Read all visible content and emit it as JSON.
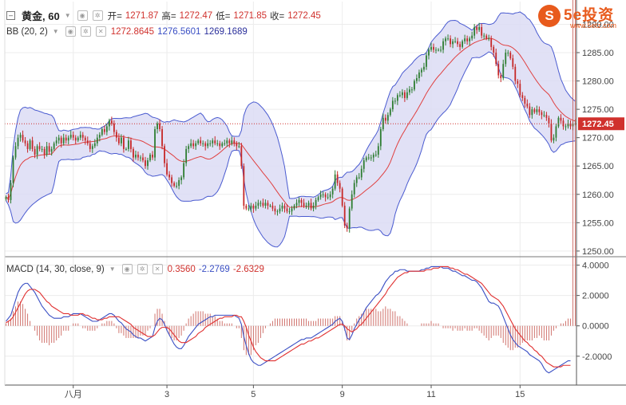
{
  "header": {
    "symbol": "黄金, 60",
    "open_label": "开=",
    "open_value": "1271.87",
    "high_label": "高=",
    "high_value": "1272.47",
    "low_label": "低=",
    "low_value": "1271.85",
    "close_label": "收=",
    "close_value": "1272.45"
  },
  "bb_legend": {
    "label": "BB (20, 2)",
    "basis": "1272.8645",
    "upper": "1276.5601",
    "lower": "1269.1689"
  },
  "macd_legend": {
    "label": "MACD (14, 30, close, 9)",
    "hist": "0.3560",
    "macd": "-2.2769",
    "signal": "-2.6329"
  },
  "logo": {
    "glyph": "S",
    "name": "5e投资",
    "url": "www.5etz.com"
  },
  "colors": {
    "up": "#2e7d32",
    "down": "#c62828",
    "bb_line": "#4a5bd0",
    "bb_fill": "#dcdcf4",
    "basis_line": "#e04040",
    "macd_line": "#3a4fc4",
    "signal_line": "#e03030",
    "hist": "#c0453d",
    "price_tag": "#d0312d"
  },
  "chart_data": [
    {
      "type": "candlestick",
      "title": "黄金, 60",
      "y_axis_ticks": [
        "1250.00",
        "1255.00",
        "1260.00",
        "1265.00",
        "1270.00",
        "1275.00",
        "1280.00",
        "1285.00",
        "1290.00"
      ],
      "ylim": [
        1249,
        1294
      ],
      "x_tick_labels": [
        "八月",
        "3",
        "5",
        "9",
        "11",
        "15"
      ],
      "x_tick_index": [
        28,
        67,
        103,
        140,
        177,
        214
      ],
      "n_bars": 240,
      "last_price": "1272.45",
      "close": [
        1259.5,
        1259.0,
        1262.0,
        1266.5,
        1268.5,
        1270.0,
        1270.5,
        1269.5,
        1269.0,
        1268.0,
        1269.5,
        1268.0,
        1267.0,
        1268.5,
        1268.0,
        1268.0,
        1267.0,
        1268.5,
        1267.5,
        1268.0,
        1269.0,
        1269.5,
        1270.0,
        1269.0,
        1270.0,
        1269.5,
        1270.0,
        1270.5,
        1270.0,
        1269.5,
        1270.0,
        1270.5,
        1270.0,
        1269.5,
        1269.0,
        1268.0,
        1268.5,
        1269.0,
        1270.0,
        1270.5,
        1271.5,
        1271.0,
        1272.0,
        1273.0,
        1272.5,
        1271.0,
        1270.0,
        1269.0,
        1270.0,
        1268.0,
        1268.0,
        1269.5,
        1268.0,
        1266.5,
        1267.0,
        1266.5,
        1266.5,
        1266.0,
        1265.0,
        1266.0,
        1267.0,
        1266.5,
        1271.5,
        1272.5,
        1271.5,
        1268.5,
        1265.5,
        1263.5,
        1263.0,
        1262.0,
        1261.5,
        1261.5,
        1262.5,
        1263.0,
        1265.5,
        1268.0,
        1268.5,
        1269.0,
        1268.5,
        1269.0,
        1269.5,
        1269.0,
        1269.0,
        1268.5,
        1269.0,
        1269.0,
        1269.5,
        1269.0,
        1269.0,
        1268.5,
        1269.0,
        1269.0,
        1269.5,
        1269.0,
        1269.5,
        1269.0,
        1268.5,
        1268.5,
        1265.0,
        1258.0,
        1257.5,
        1257.5,
        1258.0,
        1257.5,
        1258.0,
        1258.5,
        1258.5,
        1258.0,
        1258.5,
        1258.0,
        1258.0,
        1257.5,
        1257.0,
        1257.0,
        1257.5,
        1258.0,
        1257.5,
        1257.0,
        1257.0,
        1257.5,
        1258.0,
        1258.5,
        1259.0,
        1258.5,
        1258.0,
        1258.0,
        1258.5,
        1257.5,
        1258.0,
        1259.0,
        1259.5,
        1260.0,
        1260.0,
        1259.5,
        1259.5,
        1260.0,
        1261.0,
        1263.5,
        1262.0,
        1261.0,
        1258.0,
        1254.5,
        1254.0,
        1257.5,
        1260.0,
        1262.0,
        1263.0,
        1263.0,
        1264.5,
        1266.0,
        1266.5,
        1266.5,
        1266.5,
        1267.0,
        1267.0,
        1268.5,
        1271.5,
        1273.5,
        1273.0,
        1274.0,
        1275.0,
        1276.5,
        1276.5,
        1277.5,
        1277.5,
        1278.0,
        1277.0,
        1278.0,
        1278.5,
        1278.5,
        1280.0,
        1280.5,
        1281.5,
        1282.0,
        1282.5,
        1284.5,
        1285.5,
        1286.0,
        1285.5,
        1285.5,
        1285.5,
        1285.5,
        1287.0,
        1287.5,
        1287.5,
        1286.5,
        1287.0,
        1287.0,
        1286.5,
        1286.0,
        1287.0,
        1287.5,
        1287.0,
        1287.5,
        1288.0,
        1289.5,
        1289.0,
        1289.5,
        1288.0,
        1288.0,
        1287.5,
        1287.5,
        1286.0,
        1285.0,
        1283.0,
        1281.0,
        1280.5,
        1283.0,
        1285.0,
        1285.0,
        1284.0,
        1282.5,
        1280.0,
        1279.5,
        1277.5,
        1277.0,
        1276.0,
        1275.5,
        1274.0,
        1275.0,
        1274.5,
        1275.0,
        1274.5,
        1274.0,
        1274.0,
        1273.5,
        1272.5,
        1269.5,
        1270.0,
        1272.0,
        1273.5,
        1273.0,
        1272.0,
        1272.0,
        1272.5,
        1272.0,
        1272.5,
        1272.5
      ]
    },
    {
      "type": "line",
      "title": "MACD (14, 30, close, 9)",
      "y_axis_ticks": [
        "4.0000",
        "2.0000",
        "0.0000",
        "-2.0000"
      ],
      "ylim": [
        -3.9,
        4.5
      ],
      "series": [
        {
          "name": "MACD",
          "values": [
            0.3,
            0.5,
            0.7,
            1.2,
            1.7,
            2.2,
            2.5,
            2.7,
            2.8,
            2.8,
            2.6,
            2.4,
            2.2,
            1.9,
            1.6,
            1.3,
            1.1,
            0.9,
            0.7,
            0.6,
            0.5,
            0.5,
            0.5,
            0.5,
            0.6,
            0.6,
            0.6,
            0.7,
            0.8,
            0.8,
            0.8,
            0.8,
            0.7,
            0.6,
            0.5,
            0.4,
            0.3,
            0.3,
            0.3,
            0.4,
            0.5,
            0.6,
            0.7,
            0.8,
            0.8,
            0.7,
            0.5,
            0.3,
            0.2,
            0.0,
            -0.2,
            -0.3,
            -0.4,
            -0.6,
            -0.7,
            -0.8,
            -0.8,
            -0.9,
            -1.0,
            -0.9,
            -0.8,
            -0.7,
            -0.1,
            0.3,
            0.5,
            0.4,
            0.1,
            -0.3,
            -0.6,
            -0.9,
            -1.2,
            -1.4,
            -1.5,
            -1.5,
            -1.3,
            -1.0,
            -0.7,
            -0.5,
            -0.3,
            -0.1,
            0.1,
            0.2,
            0.3,
            0.4,
            0.5,
            0.6,
            0.6,
            0.7,
            0.7,
            0.7,
            0.7,
            0.7,
            0.7,
            0.7,
            0.7,
            0.7,
            0.6,
            0.5,
            0.1,
            -0.7,
            -1.3,
            -1.8,
            -2.2,
            -2.4,
            -2.5,
            -2.6,
            -2.6,
            -2.5,
            -2.4,
            -2.3,
            -2.2,
            -2.1,
            -2.0,
            -1.9,
            -1.8,
            -1.7,
            -1.6,
            -1.5,
            -1.4,
            -1.3,
            -1.2,
            -1.1,
            -1.0,
            -0.9,
            -0.9,
            -0.8,
            -0.8,
            -0.8,
            -0.7,
            -0.6,
            -0.5,
            -0.4,
            -0.3,
            -0.2,
            -0.1,
            0.0,
            0.1,
            0.3,
            0.4,
            0.5,
            0.3,
            -0.2,
            -0.8,
            -0.9,
            -0.6,
            -0.2,
            0.1,
            0.4,
            0.6,
            0.9,
            1.2,
            1.4,
            1.6,
            1.8,
            2.0,
            2.1,
            2.3,
            2.6,
            2.9,
            3.1,
            3.3,
            3.4,
            3.6,
            3.6,
            3.7,
            3.7,
            3.7,
            3.6,
            3.6,
            3.6,
            3.6,
            3.6,
            3.6,
            3.7,
            3.7,
            3.8,
            3.8,
            3.9,
            3.9,
            3.9,
            3.9,
            3.9,
            3.8,
            3.8,
            3.8,
            3.7,
            3.6,
            3.6,
            3.5,
            3.4,
            3.3,
            3.3,
            3.2,
            3.1,
            3.0,
            3.0,
            2.9,
            2.7,
            2.5,
            2.2,
            1.9,
            1.6,
            1.5,
            1.5,
            1.4,
            1.3,
            1.0,
            0.6,
            0.2,
            -0.2,
            -0.6,
            -0.9,
            -1.1,
            -1.3,
            -1.4,
            -1.5,
            -1.6,
            -1.7,
            -1.9,
            -2.0,
            -2.1,
            -2.2,
            -2.3,
            -2.5,
            -2.8,
            -3.0,
            -3.1,
            -3.0,
            -2.9,
            -2.8,
            -2.7,
            -2.6,
            -2.5,
            -2.4,
            -2.3,
            -2.3
          ]
        },
        {
          "name": "Signal",
          "values": [
            0.2,
            0.3,
            0.4,
            0.6,
            0.9,
            1.2,
            1.5,
            1.8,
            2.1,
            2.3,
            2.4,
            2.4,
            2.4,
            2.3,
            2.2,
            2.0,
            1.8,
            1.6,
            1.5,
            1.3,
            1.2,
            1.1,
            1.0,
            0.9,
            0.8,
            0.8,
            0.8,
            0.7,
            0.7,
            0.7,
            0.7,
            0.8,
            0.8,
            0.7,
            0.7,
            0.6,
            0.5,
            0.5,
            0.4,
            0.4,
            0.4,
            0.5,
            0.5,
            0.6,
            0.6,
            0.6,
            0.6,
            0.6,
            0.5,
            0.4,
            0.3,
            0.2,
            0.1,
            -0.1,
            -0.2,
            -0.3,
            -0.4,
            -0.5,
            -0.6,
            -0.7,
            -0.7,
            -0.7,
            -0.6,
            -0.4,
            -0.2,
            -0.1,
            -0.1,
            -0.1,
            -0.2,
            -0.4,
            -0.6,
            -0.8,
            -1.0,
            -1.1,
            -1.1,
            -1.1,
            -1.0,
            -0.9,
            -0.8,
            -0.7,
            -0.5,
            -0.4,
            -0.3,
            -0.1,
            0.0,
            0.1,
            0.2,
            0.3,
            0.4,
            0.5,
            0.5,
            0.6,
            0.6,
            0.6,
            0.6,
            0.7,
            0.7,
            0.6,
            0.6,
            0.3,
            -0.1,
            -0.6,
            -1.0,
            -1.4,
            -1.7,
            -1.9,
            -2.1,
            -2.2,
            -2.3,
            -2.3,
            -2.3,
            -2.3,
            -2.3,
            -2.2,
            -2.1,
            -2.0,
            -1.9,
            -1.8,
            -1.7,
            -1.6,
            -1.5,
            -1.4,
            -1.3,
            -1.2,
            -1.2,
            -1.1,
            -1.0,
            -1.0,
            -0.9,
            -0.8,
            -0.8,
            -0.7,
            -0.6,
            -0.5,
            -0.4,
            -0.3,
            -0.2,
            -0.1,
            0.0,
            0.1,
            0.1,
            0.0,
            -0.2,
            -0.3,
            -0.4,
            -0.3,
            -0.2,
            0.0,
            0.1,
            0.3,
            0.5,
            0.7,
            0.9,
            1.1,
            1.3,
            1.5,
            1.7,
            1.9,
            2.1,
            2.4,
            2.6,
            2.8,
            3.0,
            3.2,
            3.3,
            3.4,
            3.5,
            3.5,
            3.6,
            3.6,
            3.6,
            3.6,
            3.6,
            3.6,
            3.6,
            3.7,
            3.7,
            3.7,
            3.8,
            3.8,
            3.8,
            3.9,
            3.9,
            3.9,
            3.9,
            3.8,
            3.8,
            3.7,
            3.7,
            3.6,
            3.5,
            3.4,
            3.4,
            3.3,
            3.2,
            3.1,
            3.0,
            2.9,
            2.8,
            2.6,
            2.4,
            2.2,
            2.0,
            1.9,
            1.8,
            1.7,
            1.5,
            1.3,
            1.0,
            0.7,
            0.4,
            0.1,
            -0.2,
            -0.4,
            -0.6,
            -0.8,
            -1.0,
            -1.1,
            -1.3,
            -1.4,
            -1.6,
            -1.7,
            -1.9,
            -2.0,
            -2.2,
            -2.4,
            -2.5,
            -2.6,
            -2.7,
            -2.7,
            -2.7,
            -2.7,
            -2.6,
            -2.6,
            -2.6,
            -2.6
          ]
        }
      ]
    }
  ]
}
